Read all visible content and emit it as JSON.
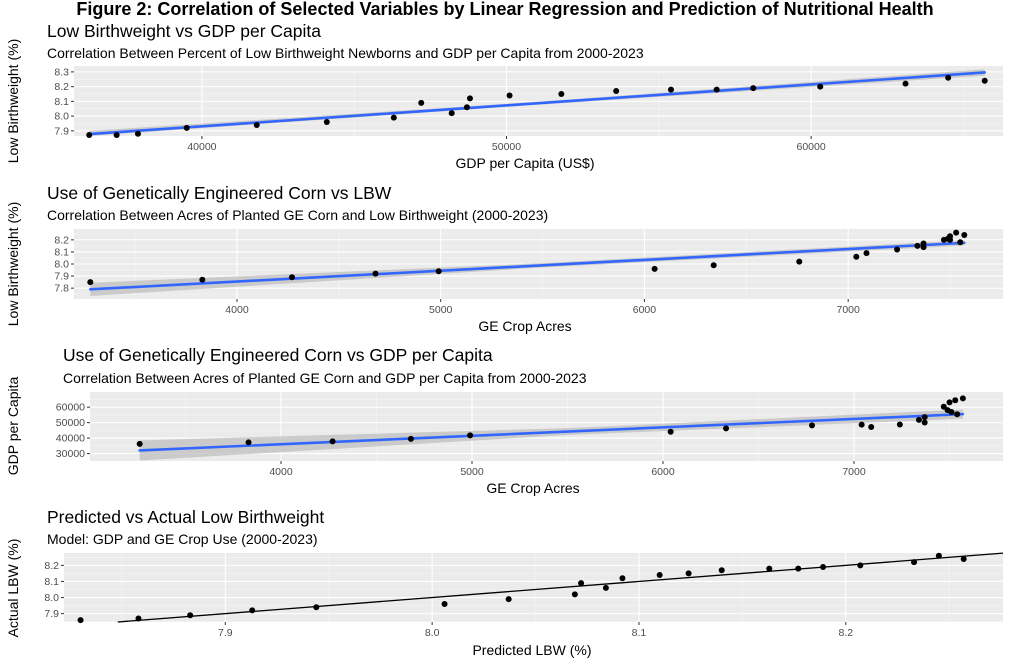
{
  "figure_title": "Figure 2: Correlation of Selected Variables by Linear Regression and Prediction of Nutritional Health",
  "chart_data": [
    {
      "type": "scatter",
      "title": "Low Birthweight vs GDP per Capita",
      "subtitle": "Correlation Between Percent of Low Birthweight Newborns and GDP per Capita from 2000-2023",
      "xlabel": "GDP per Capita (US$)",
      "ylabel": "Low Birthweight (%)",
      "xlim": [
        35800,
        66300
      ],
      "ylim": [
        7.865,
        8.34
      ],
      "x_ticks": [
        40000,
        50000,
        60000
      ],
      "x_tick_labels": [
        "40000",
        "50000",
        "60000"
      ],
      "y_ticks": [
        7.9,
        8.0,
        8.1,
        8.2,
        8.3
      ],
      "y_tick_labels": [
        "7.9",
        "8.0",
        "8.1",
        "8.2",
        "8.3"
      ],
      "grid": true,
      "points": [
        [
          36300,
          7.86
        ],
        [
          37200,
          7.87
        ],
        [
          37900,
          7.88
        ],
        [
          39500,
          7.92
        ],
        [
          41800,
          7.94
        ],
        [
          44100,
          7.96
        ],
        [
          46300,
          7.99
        ],
        [
          47200,
          8.09
        ],
        [
          48200,
          8.02
        ],
        [
          48700,
          8.06
        ],
        [
          48800,
          8.12
        ],
        [
          50100,
          8.14
        ],
        [
          51800,
          8.15
        ],
        [
          53600,
          8.17
        ],
        [
          55400,
          8.18
        ],
        [
          56900,
          8.18
        ],
        [
          58100,
          8.19
        ],
        [
          60300,
          8.2
        ],
        [
          63100,
          8.22
        ],
        [
          64500,
          8.26
        ],
        [
          65700,
          8.24
        ]
      ],
      "fit": {
        "x": [
          36300,
          65700
        ],
        "y": [
          7.878,
          8.296
        ]
      },
      "ci": {
        "x": [
          36300,
          51000,
          65700
        ],
        "half_width": [
          0.022,
          0.01,
          0.022
        ]
      },
      "fit_color": "#3366ff",
      "band_color": "#bfbfbf"
    },
    {
      "type": "scatter",
      "title": "Use of Genetically Engineered Corn vs LBW",
      "subtitle": "Correlation Between Acres of Planted GE Corn and Low Birthweight (2000-2023)",
      "xlabel": "GE Crop Acres",
      "ylabel": "Low Birthweight (%)",
      "xlim": [
        3200,
        7760
      ],
      "ylim": [
        7.71,
        8.29
      ],
      "x_ticks": [
        4000,
        5000,
        6000,
        7000
      ],
      "x_tick_labels": [
        "4000",
        "5000",
        "6000",
        "7000"
      ],
      "y_ticks": [
        7.8,
        7.9,
        8.0,
        8.1,
        8.2
      ],
      "y_tick_labels": [
        "7.8",
        "7.9",
        "8.0",
        "8.1",
        "8.2"
      ],
      "grid": true,
      "points": [
        [
          3280,
          7.85
        ],
        [
          3830,
          7.87
        ],
        [
          4270,
          7.89
        ],
        [
          4680,
          7.92
        ],
        [
          4990,
          7.94
        ],
        [
          6050,
          7.96
        ],
        [
          6340,
          7.99
        ],
        [
          6760,
          8.02
        ],
        [
          7040,
          8.06
        ],
        [
          7090,
          8.09
        ],
        [
          7240,
          8.12
        ],
        [
          7340,
          8.15
        ],
        [
          7370,
          8.14
        ],
        [
          7370,
          8.17
        ],
        [
          7470,
          8.2
        ],
        [
          7490,
          8.21
        ],
        [
          7500,
          8.2
        ],
        [
          7500,
          8.23
        ],
        [
          7530,
          8.26
        ],
        [
          7550,
          8.18
        ],
        [
          7570,
          8.24
        ]
      ],
      "fit": {
        "x": [
          3280,
          7570
        ],
        "y": [
          7.79,
          8.175
        ]
      },
      "ci": {
        "x": [
          3280,
          5500,
          7570
        ],
        "half_width": [
          0.055,
          0.018,
          0.022
        ]
      },
      "fit_color": "#3366ff",
      "band_color": "#bfbfbf"
    },
    {
      "type": "scatter",
      "title": "Use of Genetically Engineered Corn vs GDP per Capita",
      "subtitle": "Correlation Between Acres of Planted GE Corn and GDP per Capita from 2000-2023",
      "xlabel": "GE Crop Acres",
      "ylabel": "GDP per Capita",
      "xlim": [
        3000,
        7780
      ],
      "ylim": [
        25200,
        69800
      ],
      "x_ticks": [
        4000,
        5000,
        6000,
        7000
      ],
      "x_tick_labels": [
        "4000",
        "5000",
        "6000",
        "7000"
      ],
      "y_ticks": [
        30000,
        40000,
        50000,
        60000
      ],
      "y_tick_labels": [
        "30000",
        "40000",
        "50000",
        "60000"
      ],
      "grid": true,
      "points": [
        [
          3260,
          36300
        ],
        [
          3830,
          37200
        ],
        [
          4270,
          37900
        ],
        [
          4680,
          39500
        ],
        [
          4990,
          41800
        ],
        [
          6040,
          44100
        ],
        [
          6330,
          46300
        ],
        [
          6780,
          48200
        ],
        [
          7040,
          48700
        ],
        [
          7090,
          47200
        ],
        [
          7240,
          48800
        ],
        [
          7340,
          51800
        ],
        [
          7370,
          50100
        ],
        [
          7370,
          53600
        ],
        [
          7470,
          60300
        ],
        [
          7490,
          58100
        ],
        [
          7500,
          63100
        ],
        [
          7510,
          56900
        ],
        [
          7530,
          64500
        ],
        [
          7540,
          55400
        ],
        [
          7570,
          65700
        ]
      ],
      "fit": {
        "x": [
          3260,
          7570
        ],
        "y": [
          32000,
          55500
        ]
      },
      "ci": {
        "x": [
          3260,
          5500,
          7570
        ],
        "half_width": [
          6500,
          2200,
          3000
        ]
      },
      "fit_color": "#3366ff",
      "band_color": "#bfbfbf"
    },
    {
      "type": "scatter",
      "title": "Predicted vs Actual Low Birthweight",
      "subtitle": "Model: GDP and GE Crop Use (2000-2023)",
      "xlabel": "Predicted LBW (%)",
      "ylabel": "Actual LBW (%)",
      "xlim": [
        7.822,
        8.276
      ],
      "ylim": [
        7.848,
        8.277
      ],
      "x_ticks": [
        7.9,
        8.0,
        8.1,
        8.2
      ],
      "x_tick_labels": [
        "7.9",
        "8.0",
        "8.1",
        "8.2"
      ],
      "y_ticks": [
        7.9,
        8.0,
        8.1,
        8.2
      ],
      "y_tick_labels": [
        "7.9",
        "8.0",
        "8.1",
        "8.2"
      ],
      "grid": true,
      "points": [
        [
          7.83,
          7.86
        ],
        [
          7.858,
          7.87
        ],
        [
          7.883,
          7.89
        ],
        [
          7.913,
          7.92
        ],
        [
          7.944,
          7.94
        ],
        [
          8.006,
          7.96
        ],
        [
          8.037,
          7.99
        ],
        [
          8.069,
          8.02
        ],
        [
          8.072,
          8.09
        ],
        [
          8.084,
          8.06
        ],
        [
          8.092,
          8.12
        ],
        [
          8.11,
          8.14
        ],
        [
          8.124,
          8.15
        ],
        [
          8.14,
          8.17
        ],
        [
          8.163,
          8.18
        ],
        [
          8.177,
          8.18
        ],
        [
          8.189,
          8.19
        ],
        [
          8.207,
          8.2
        ],
        [
          8.233,
          8.22
        ],
        [
          8.245,
          8.26
        ],
        [
          8.257,
          8.24
        ]
      ],
      "reference_line": {
        "slope": 1,
        "intercept": 0,
        "color": "#000000"
      }
    }
  ]
}
